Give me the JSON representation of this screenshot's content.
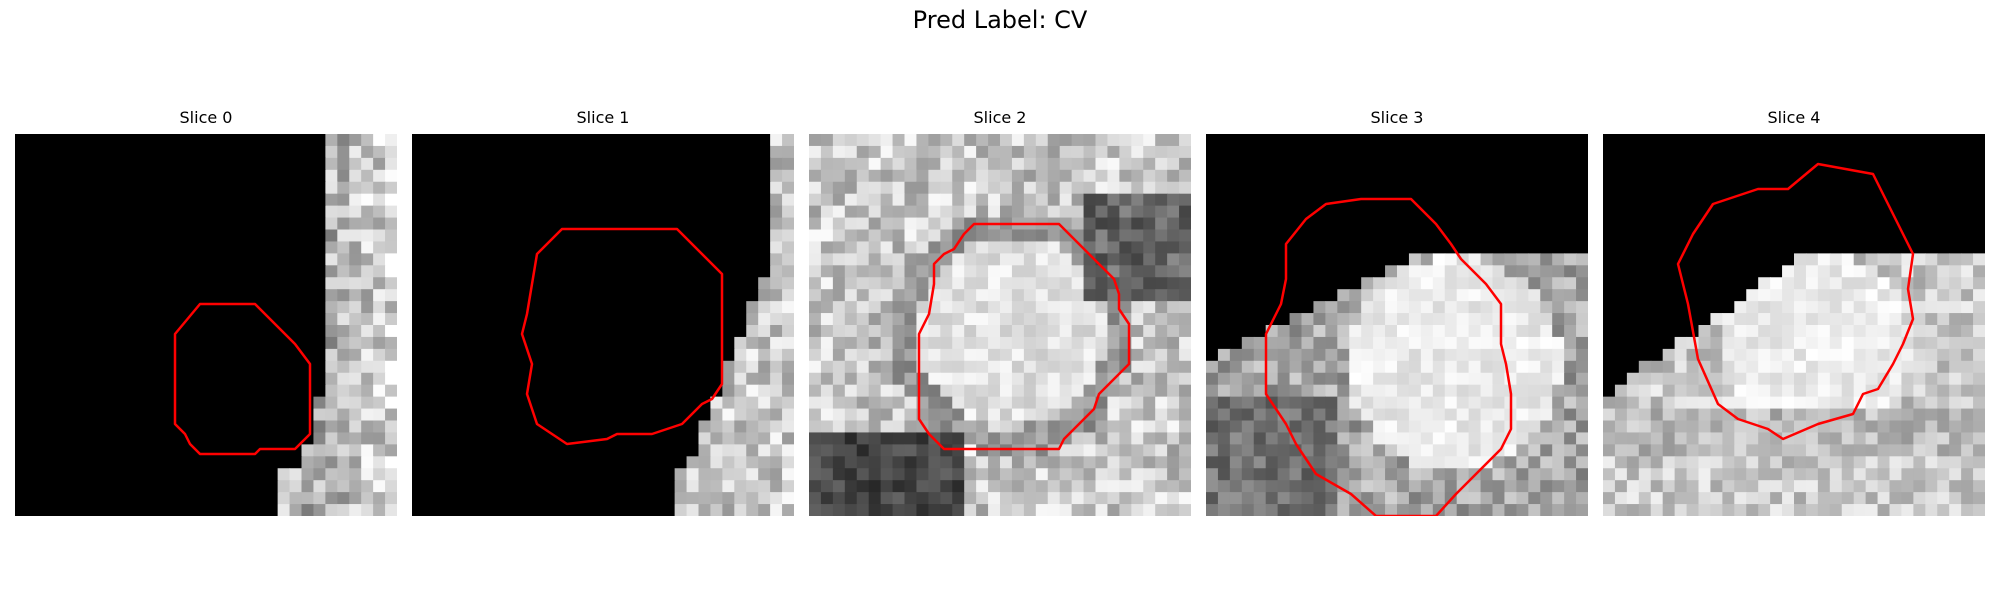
{
  "figure": {
    "title": "Pred Label: CV"
  },
  "panels": [
    {
      "title": "Slice 0",
      "contour_color": "#ff0000"
    },
    {
      "title": "Slice 1",
      "contour_color": "#ff0000"
    },
    {
      "title": "Slice 2",
      "contour_color": "#ff0000"
    },
    {
      "title": "Slice 3",
      "contour_color": "#ff0000"
    },
    {
      "title": "Slice 4",
      "contour_color": "#ff0000"
    }
  ]
}
